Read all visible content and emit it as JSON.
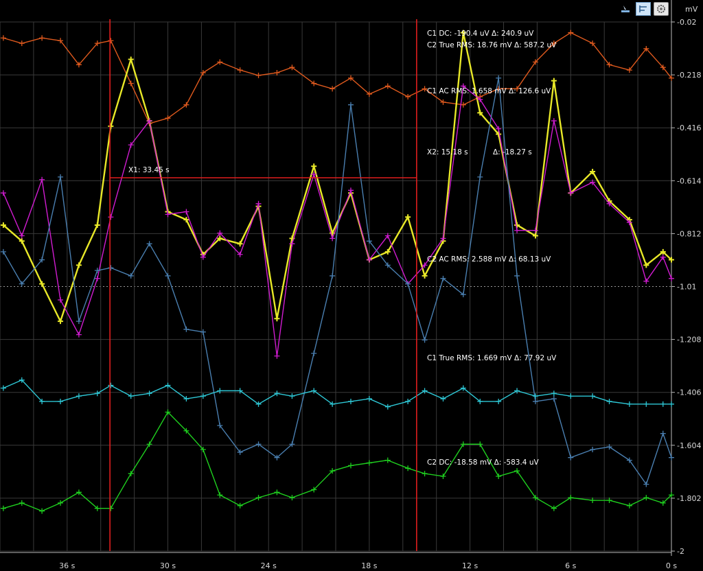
{
  "chart_data": {
    "type": "line",
    "y_unit": "mV",
    "ylim": [
      -2,
      -0.02
    ],
    "xlim": [
      40,
      0
    ],
    "y_ticks": [
      "-0.02",
      "-0.218",
      "-0.416",
      "-0.614",
      "-0.812",
      "-1.01",
      "-1.208",
      "-1.406",
      "-1.604",
      "-1.802",
      "-2"
    ],
    "y_tick_values": [
      -0.02,
      -0.218,
      -0.416,
      -0.614,
      -0.812,
      -1.01,
      -1.208,
      -1.406,
      -1.604,
      -1.802,
      -2
    ],
    "x_ticks": [
      "36 s",
      "30 s",
      "24 s",
      "18 s",
      "12 s",
      "6 s",
      "0 s"
    ],
    "x_tick_values": [
      36,
      30,
      24,
      18,
      12,
      6,
      0
    ],
    "grid": true,
    "series": [
      {
        "color": "#e05a1e",
        "x": [
          39.8,
          38.7,
          37.5,
          36.4,
          35.3,
          34.2,
          33.4,
          32.2,
          31.1,
          30.0,
          28.9,
          27.9,
          26.9,
          25.7,
          24.6,
          23.5,
          22.6,
          21.3,
          20.2,
          19.1,
          18.0,
          16.9,
          15.7,
          14.7,
          13.6,
          12.4,
          11.4,
          10.3,
          9.2,
          8.1,
          7.0,
          6.0,
          4.7,
          3.7,
          2.5,
          1.5,
          0.5,
          0.0
        ],
        "values": [
          -0.08,
          -0.1,
          -0.08,
          -0.09,
          -0.18,
          -0.1,
          -0.09,
          -0.25,
          -0.4,
          -0.38,
          -0.33,
          -0.21,
          -0.17,
          -0.2,
          -0.22,
          -0.21,
          -0.19,
          -0.25,
          -0.27,
          -0.23,
          -0.29,
          -0.26,
          -0.3,
          -0.27,
          -0.32,
          -0.33,
          -0.3,
          -0.27,
          -0.27,
          -0.17,
          -0.1,
          -0.06,
          -0.1,
          -0.18,
          -0.2,
          -0.12,
          -0.19,
          -0.23
        ]
      },
      {
        "color": "#e8e828",
        "x": [
          39.8,
          38.7,
          37.5,
          36.4,
          35.3,
          34.2,
          33.4,
          32.2,
          31.1,
          30.0,
          28.9,
          27.9,
          26.9,
          25.7,
          24.6,
          23.5,
          22.6,
          21.3,
          20.2,
          19.1,
          18.0,
          16.9,
          15.7,
          14.7,
          13.6,
          12.4,
          11.4,
          10.3,
          9.2,
          8.1,
          7.0,
          6.0,
          4.7,
          3.7,
          2.5,
          1.5,
          0.5,
          0.0
        ],
        "values": [
          -0.78,
          -0.84,
          -1.0,
          -1.14,
          -0.93,
          -0.78,
          -0.41,
          -0.16,
          -0.39,
          -0.73,
          -0.76,
          -0.89,
          -0.83,
          -0.85,
          -0.71,
          -1.13,
          -0.83,
          -0.56,
          -0.81,
          -0.66,
          -0.91,
          -0.88,
          -0.75,
          -0.97,
          -0.84,
          -0.06,
          -0.36,
          -0.44,
          -0.78,
          -0.82,
          -0.24,
          -0.66,
          -0.58,
          -0.69,
          -0.76,
          -0.93,
          -0.88,
          -0.91
        ]
      },
      {
        "color": "#d11cd1",
        "x": [
          39.8,
          38.7,
          37.5,
          36.4,
          35.3,
          34.2,
          33.4,
          32.2,
          31.1,
          30.0,
          28.9,
          27.9,
          26.9,
          25.7,
          24.6,
          23.5,
          22.6,
          21.3,
          20.2,
          19.1,
          18.0,
          16.9,
          15.7,
          14.7,
          13.6,
          12.4,
          11.4,
          10.3,
          9.2,
          8.1,
          7.0,
          6.0,
          4.7,
          3.7,
          2.5,
          1.5,
          0.5,
          0.0
        ],
        "values": [
          -0.66,
          -0.82,
          -0.61,
          -1.06,
          -1.19,
          -0.98,
          -0.75,
          -0.48,
          -0.39,
          -0.74,
          -0.73,
          -0.9,
          -0.81,
          -0.89,
          -0.7,
          -1.27,
          -0.85,
          -0.59,
          -0.83,
          -0.65,
          -0.91,
          -0.82,
          -1.0,
          -0.93,
          -0.83,
          -0.26,
          -0.31,
          -0.42,
          -0.8,
          -0.8,
          -0.39,
          -0.66,
          -0.62,
          -0.7,
          -0.77,
          -0.99,
          -0.9,
          -0.98
        ]
      },
      {
        "color": "#4a7fb0",
        "x": [
          39.8,
          38.7,
          37.5,
          36.4,
          35.3,
          34.2,
          33.4,
          32.2,
          31.1,
          30.0,
          28.9,
          27.9,
          26.9,
          25.7,
          24.6,
          23.5,
          22.6,
          21.3,
          20.2,
          19.1,
          18.0,
          16.9,
          15.7,
          14.7,
          13.6,
          12.4,
          11.4,
          10.3,
          9.2,
          8.1,
          7.0,
          6.0,
          4.7,
          3.7,
          2.5,
          1.5,
          0.5,
          0.0
        ],
        "values": [
          -0.88,
          -1.0,
          -0.91,
          -0.6,
          -1.14,
          -0.95,
          -0.94,
          -0.97,
          -0.85,
          -0.97,
          -1.17,
          -1.18,
          -1.53,
          -1.63,
          -1.6,
          -1.65,
          -1.6,
          -1.26,
          -0.97,
          -0.33,
          -0.84,
          -0.93,
          -1.0,
          -1.21,
          -0.98,
          -1.04,
          -0.6,
          -0.23,
          -0.97,
          -1.44,
          -1.43,
          -1.65,
          -1.62,
          -1.61,
          -1.66,
          -1.75,
          -1.56,
          -1.65
        ]
      },
      {
        "color": "#2ec8d6",
        "x": [
          39.8,
          38.7,
          37.5,
          36.4,
          35.3,
          34.2,
          33.4,
          32.2,
          31.1,
          30.0,
          28.9,
          27.9,
          26.9,
          25.7,
          24.6,
          23.5,
          22.6,
          21.3,
          20.2,
          19.1,
          18.0,
          16.9,
          15.7,
          14.7,
          13.6,
          12.4,
          11.4,
          10.3,
          9.2,
          8.1,
          7.0,
          6.0,
          4.7,
          3.7,
          2.5,
          1.5,
          0.5,
          0.0
        ],
        "values": [
          -1.39,
          -1.36,
          -1.44,
          -1.44,
          -1.42,
          -1.41,
          -1.38,
          -1.42,
          -1.41,
          -1.38,
          -1.43,
          -1.42,
          -1.4,
          -1.4,
          -1.45,
          -1.41,
          -1.42,
          -1.4,
          -1.45,
          -1.44,
          -1.43,
          -1.46,
          -1.44,
          -1.4,
          -1.43,
          -1.39,
          -1.44,
          -1.44,
          -1.4,
          -1.42,
          -1.41,
          -1.42,
          -1.42,
          -1.44,
          -1.45,
          -1.45,
          -1.45,
          -1.45
        ]
      },
      {
        "color": "#1fd01f",
        "x": [
          39.8,
          38.7,
          37.5,
          36.4,
          35.3,
          34.2,
          33.4,
          32.2,
          31.1,
          30.0,
          28.9,
          27.9,
          26.9,
          25.7,
          24.6,
          23.5,
          22.6,
          21.3,
          20.2,
          19.1,
          18.0,
          16.9,
          15.7,
          14.7,
          13.6,
          12.4,
          11.4,
          10.3,
          9.2,
          8.1,
          7.0,
          6.0,
          4.7,
          3.7,
          2.5,
          1.5,
          0.5,
          0.0
        ],
        "values": [
          -1.84,
          -1.82,
          -1.85,
          -1.82,
          -1.78,
          -1.84,
          -1.84,
          -1.71,
          -1.6,
          -1.48,
          -1.55,
          -1.62,
          -1.79,
          -1.83,
          -1.8,
          -1.78,
          -1.8,
          -1.77,
          -1.7,
          -1.68,
          -1.67,
          -1.66,
          -1.69,
          -1.71,
          -1.72,
          -1.6,
          -1.6,
          -1.72,
          -1.7,
          -1.8,
          -1.84,
          -1.8,
          -1.81,
          -1.81,
          -1.83,
          -1.8,
          -1.82,
          -1.79
        ]
      }
    ],
    "cursors": {
      "x1": {
        "value": 33.45,
        "label": "X1: 33.45 s"
      },
      "x2": {
        "value": 15.18,
        "label": "X2: 15.18 s",
        "delta_label": "Δ: -18.27 s"
      }
    },
    "annotations": [
      {
        "id": "c1-dc",
        "text": "C1 DC:  -190.4 uV Δ: 240.9 uV"
      },
      {
        "id": "c2-true-rms",
        "text": "C2 True RMS:    18.76 mV Δ: 587.2 uV"
      },
      {
        "id": "c1-ac-rms",
        "text": "C1 AC RMS:      1.658 mV Δ: 126.6 uV"
      },
      {
        "id": "c2-ac-rms",
        "text": "C2 AC RMS:      2.588 mV Δ: 68.13 uV"
      },
      {
        "id": "c1-true-rms",
        "text": "C1 True RMS:    1.669 mV Δ: 77.92 uV"
      },
      {
        "id": "c2-dc",
        "text": "C2 DC:  -18.58 mV Δ: -583.4 uV"
      }
    ]
  },
  "colors": {
    "background": "#000000",
    "grid": "#3a3a3a",
    "grid_mid": "#9a9a9a",
    "cursor": "#e01e1e",
    "text": "#d8d8d8"
  },
  "toolbar": {
    "icons": [
      "cursor-tool-icon",
      "ruler-icon",
      "settings-gear-icon"
    ]
  }
}
